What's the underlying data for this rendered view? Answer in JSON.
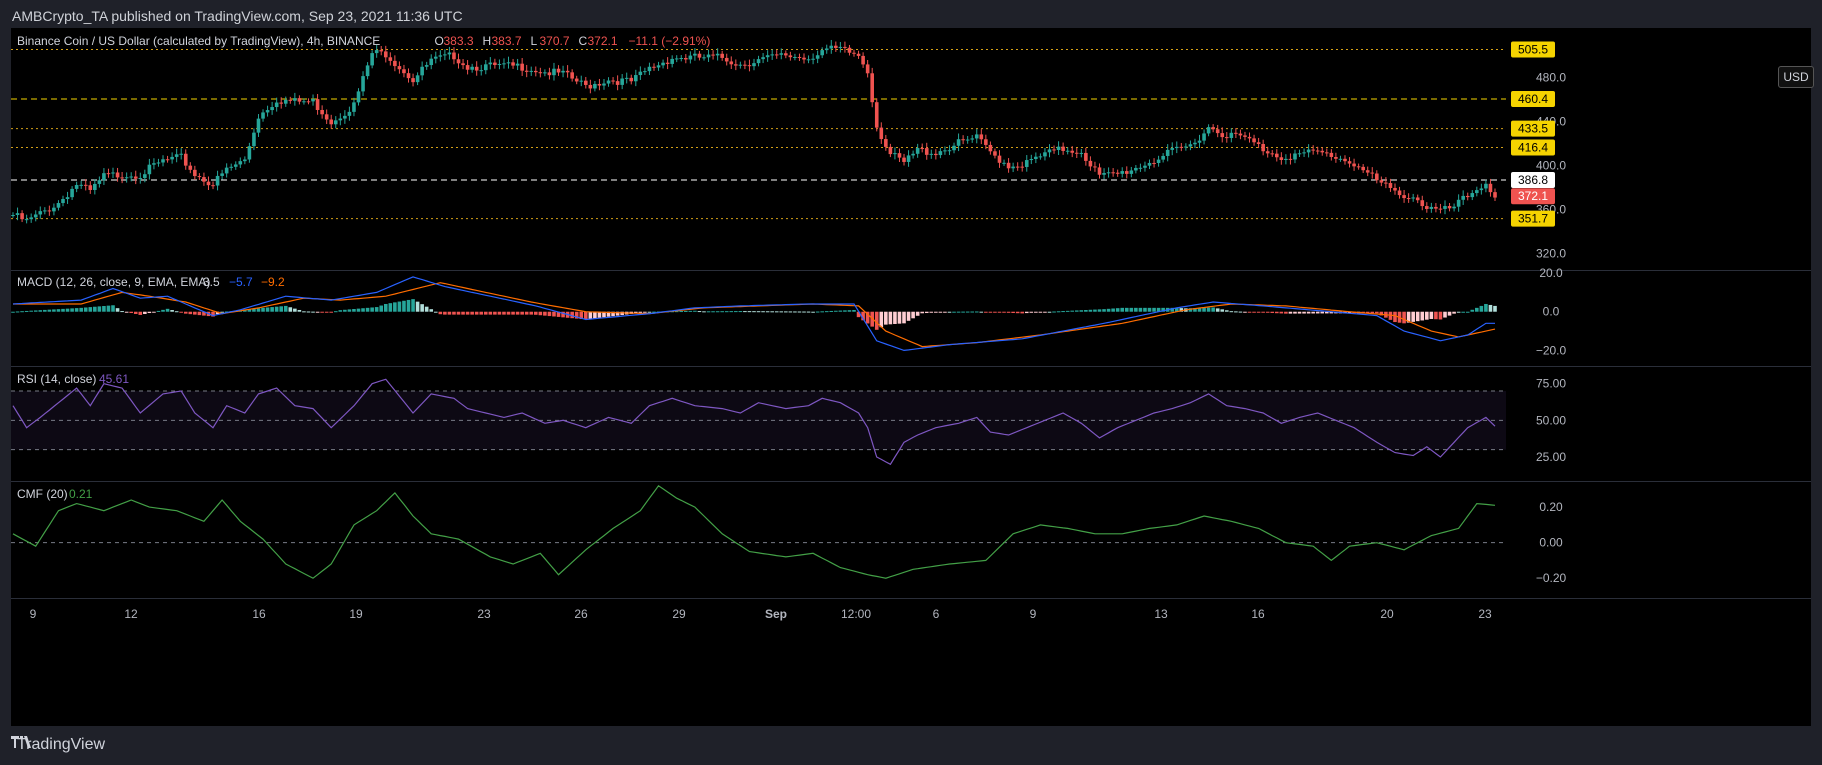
{
  "header": {
    "published_text": "AMBCrypto_TA published on TradingView.com, Sep 23, 2021 11:36 UTC"
  },
  "footer": {
    "logo_text": "TradingView"
  },
  "currency": "USD",
  "colors": {
    "background": "#000000",
    "bg_outer": "#1f2129",
    "up": "#26a69a",
    "down": "#ef5350",
    "macd_line": "#2962ff",
    "signal_line": "#ff6d00",
    "rsi_line": "#7e57c2",
    "cmf_line": "#43a047",
    "label_yellow": "#f5d300",
    "label_red": "#ef5350"
  },
  "legends": {
    "price": {
      "title": "Binance Coin / US Dollar (calculated by TradingView), 4h, BINANCE",
      "o_label": "O",
      "o": "383.3",
      "h_label": "H",
      "h": "383.7",
      "l_label": "L",
      "l": "370.7",
      "c_label": "C",
      "c": "372.1",
      "change": "−11.1 (−2.91%)"
    },
    "macd": {
      "title": "MACD (12, 26, close, 9, EMA, EMA)",
      "v1": "3.5",
      "v2": "−5.7",
      "v3": "−9.2"
    },
    "rsi": {
      "title": "RSI (14, close)",
      "v": "45.61"
    },
    "cmf": {
      "title": "CMF (20)",
      "v": "0.21"
    }
  },
  "chart_data": [
    {
      "type": "candlestick",
      "title": "Binance Coin / US Dollar (calculated by TradingView), 4h, BINANCE",
      "interval": "4h",
      "x_range": [
        "2021-08-08",
        "2021-09-23"
      ],
      "x_ticks": [
        "9",
        "12",
        "16",
        "19",
        "23",
        "26",
        "29",
        "Sep",
        "12:00",
        "6",
        "9",
        "13",
        "16",
        "20",
        "23"
      ],
      "y_ticks": [
        320,
        360,
        400,
        440,
        480
      ],
      "y_tick_labels": [
        "320.0",
        "360.0",
        "400.0",
        "440.0",
        "480.0"
      ],
      "ylim": [
        305,
        525
      ],
      "price_points": [
        [
          0,
          355
        ],
        [
          3,
          349
        ],
        [
          6,
          356
        ],
        [
          10,
          366
        ],
        [
          14,
          383
        ],
        [
          17,
          376
        ],
        [
          20,
          390
        ],
        [
          24,
          392
        ],
        [
          28,
          392
        ],
        [
          33,
          404
        ],
        [
          37,
          407
        ],
        [
          40,
          392
        ],
        [
          44,
          383
        ],
        [
          47,
          396
        ],
        [
          51,
          405
        ],
        [
          54,
          445
        ],
        [
          58,
          460
        ],
        [
          62,
          458
        ],
        [
          66,
          458
        ],
        [
          70,
          440
        ],
        [
          75,
          455
        ],
        [
          79,
          502
        ],
        [
          82,
          502
        ],
        [
          88,
          478
        ],
        [
          92,
          495
        ],
        [
          97,
          500
        ],
        [
          100,
          490
        ],
        [
          104,
          490
        ],
        [
          108,
          490
        ],
        [
          112,
          490
        ],
        [
          117,
          485
        ],
        [
          121,
          483
        ],
        [
          126,
          472
        ],
        [
          131,
          478
        ],
        [
          136,
          476
        ],
        [
          140,
          488
        ],
        [
          145,
          498
        ],
        [
          150,
          498
        ],
        [
          156,
          498
        ],
        [
          160,
          492
        ],
        [
          164,
          496
        ],
        [
          170,
          500
        ],
        [
          175,
          498
        ],
        [
          178,
          505
        ],
        [
          182,
          505
        ],
        [
          186,
          500
        ],
        [
          188,
          486
        ],
        [
          190,
          436
        ],
        [
          193,
          410
        ],
        [
          196,
          402
        ],
        [
          199,
          414
        ],
        [
          203,
          412
        ],
        [
          208,
          420
        ],
        [
          212,
          425
        ],
        [
          215,
          412
        ],
        [
          219,
          400
        ],
        [
          223,
          402
        ],
        [
          227,
          410
        ],
        [
          231,
          415
        ],
        [
          235,
          413
        ],
        [
          239,
          390
        ],
        [
          243,
          392
        ],
        [
          247,
          398
        ],
        [
          251,
          405
        ],
        [
          255,
          412
        ],
        [
          259,
          418
        ],
        [
          263,
          435
        ],
        [
          267,
          428
        ],
        [
          271,
          425
        ],
        [
          275,
          415
        ],
        [
          279,
          408
        ],
        [
          283,
          410
        ],
        [
          287,
          412
        ],
        [
          291,
          408
        ],
        [
          295,
          402
        ],
        [
          300,
          386
        ],
        [
          304,
          375
        ],
        [
          308,
          372
        ],
        [
          311,
          362
        ],
        [
          314,
          358
        ],
        [
          317,
          362
        ],
        [
          320,
          372
        ],
        [
          324,
          385
        ],
        [
          326,
          372
        ]
      ],
      "horizontal_levels": [
        {
          "value": 505.5,
          "label": "505.5",
          "style": "dotted",
          "color": "#d4a017"
        },
        {
          "value": 460.4,
          "label": "460.4",
          "style": "dashed",
          "color": "#f5d300"
        },
        {
          "value": 433.5,
          "label": "433.5",
          "style": "dotted",
          "color": "#d4a017"
        },
        {
          "value": 416.4,
          "label": "416.4",
          "style": "dotted",
          "color": "#d4a017"
        },
        {
          "value": 386.8,
          "label": "386.8",
          "style": "dashed",
          "color": "#ffffff"
        },
        {
          "value": 351.7,
          "label": "351.7",
          "style": "dotted",
          "color": "#d4a017"
        }
      ],
      "last_price": {
        "value": 372.1,
        "label": "372.1"
      }
    },
    {
      "type": "macd",
      "title": "MACD (12, 26, close, 9, EMA, EMA)",
      "y_ticks": [
        20,
        0,
        -20
      ],
      "y_tick_labels": [
        "20.0",
        "0.0",
        "−20.0"
      ],
      "ylim": [
        -27,
        20
      ],
      "macd_points": [
        [
          0,
          4
        ],
        [
          15,
          6
        ],
        [
          22,
          12
        ],
        [
          28,
          7
        ],
        [
          34,
          8
        ],
        [
          44,
          -2
        ],
        [
          50,
          1
        ],
        [
          60,
          8
        ],
        [
          70,
          6
        ],
        [
          80,
          10
        ],
        [
          88,
          18
        ],
        [
          95,
          13
        ],
        [
          105,
          8
        ],
        [
          115,
          3
        ],
        [
          126,
          -4
        ],
        [
          140,
          -1
        ],
        [
          150,
          2
        ],
        [
          160,
          3
        ],
        [
          175,
          4
        ],
        [
          185,
          4
        ],
        [
          190,
          -15
        ],
        [
          196,
          -20
        ],
        [
          206,
          -17
        ],
        [
          222,
          -14
        ],
        [
          240,
          -6
        ],
        [
          256,
          2
        ],
        [
          264,
          5
        ],
        [
          275,
          3
        ],
        [
          290,
          0
        ],
        [
          300,
          -2
        ],
        [
          306,
          -10
        ],
        [
          314,
          -15
        ],
        [
          320,
          -12
        ],
        [
          324,
          -6
        ],
        [
          326,
          -6
        ]
      ],
      "signal_points": [
        [
          0,
          4
        ],
        [
          15,
          4
        ],
        [
          24,
          10
        ],
        [
          30,
          8
        ],
        [
          38,
          5
        ],
        [
          46,
          -1
        ],
        [
          54,
          2
        ],
        [
          64,
          7
        ],
        [
          72,
          6
        ],
        [
          82,
          8
        ],
        [
          94,
          15
        ],
        [
          104,
          10
        ],
        [
          114,
          5
        ],
        [
          126,
          0
        ],
        [
          140,
          -1
        ],
        [
          152,
          2
        ],
        [
          164,
          3
        ],
        [
          176,
          4
        ],
        [
          186,
          3
        ],
        [
          192,
          -10
        ],
        [
          200,
          -18
        ],
        [
          212,
          -16
        ],
        [
          226,
          -12
        ],
        [
          244,
          -6
        ],
        [
          258,
          1
        ],
        [
          268,
          4
        ],
        [
          280,
          3
        ],
        [
          294,
          0
        ],
        [
          304,
          -2
        ],
        [
          312,
          -10
        ],
        [
          318,
          -13
        ],
        [
          324,
          -10
        ],
        [
          326,
          -9
        ]
      ]
    },
    {
      "type": "line",
      "title": "RSI (14, close)",
      "y_ticks": [
        75,
        50,
        25
      ],
      "y_tick_labels": [
        "75.00",
        "50.00",
        "25.00"
      ],
      "band": [
        30,
        70
      ],
      "ylim": [
        10,
        85
      ],
      "values": [
        [
          0,
          60
        ],
        [
          3,
          45
        ],
        [
          6,
          52
        ],
        [
          10,
          62
        ],
        [
          14,
          72
        ],
        [
          17,
          60
        ],
        [
          20,
          75
        ],
        [
          24,
          72
        ],
        [
          28,
          55
        ],
        [
          33,
          68
        ],
        [
          37,
          70
        ],
        [
          40,
          55
        ],
        [
          44,
          45
        ],
        [
          47,
          60
        ],
        [
          51,
          55
        ],
        [
          54,
          68
        ],
        [
          58,
          72
        ],
        [
          62,
          60
        ],
        [
          66,
          58
        ],
        [
          70,
          45
        ],
        [
          75,
          60
        ],
        [
          79,
          75
        ],
        [
          82,
          78
        ],
        [
          88,
          55
        ],
        [
          92,
          68
        ],
        [
          97,
          65
        ],
        [
          100,
          58
        ],
        [
          104,
          55
        ],
        [
          108,
          52
        ],
        [
          112,
          55
        ],
        [
          117,
          48
        ],
        [
          121,
          50
        ],
        [
          126,
          45
        ],
        [
          131,
          52
        ],
        [
          136,
          48
        ],
        [
          140,
          60
        ],
        [
          145,
          65
        ],
        [
          150,
          60
        ],
        [
          156,
          58
        ],
        [
          160,
          55
        ],
        [
          164,
          62
        ],
        [
          170,
          58
        ],
        [
          175,
          60
        ],
        [
          178,
          65
        ],
        [
          182,
          62
        ],
        [
          186,
          55
        ],
        [
          188,
          45
        ],
        [
          190,
          25
        ],
        [
          193,
          20
        ],
        [
          196,
          35
        ],
        [
          199,
          40
        ],
        [
          203,
          45
        ],
        [
          208,
          48
        ],
        [
          212,
          52
        ],
        [
          215,
          42
        ],
        [
          219,
          40
        ],
        [
          223,
          45
        ],
        [
          227,
          50
        ],
        [
          231,
          55
        ],
        [
          235,
          48
        ],
        [
          239,
          38
        ],
        [
          243,
          45
        ],
        [
          247,
          50
        ],
        [
          251,
          55
        ],
        [
          255,
          58
        ],
        [
          259,
          62
        ],
        [
          263,
          68
        ],
        [
          267,
          60
        ],
        [
          271,
          58
        ],
        [
          275,
          55
        ],
        [
          279,
          48
        ],
        [
          283,
          52
        ],
        [
          287,
          55
        ],
        [
          291,
          50
        ],
        [
          295,
          45
        ],
        [
          300,
          35
        ],
        [
          304,
          28
        ],
        [
          308,
          26
        ],
        [
          311,
          32
        ],
        [
          314,
          25
        ],
        [
          317,
          35
        ],
        [
          320,
          45
        ],
        [
          324,
          52
        ],
        [
          326,
          46
        ]
      ]
    },
    {
      "type": "line",
      "title": "CMF (20)",
      "y_ticks": [
        0.2,
        0,
        -0.2
      ],
      "y_tick_labels": [
        "0.20",
        "0.00",
        "−0.20"
      ],
      "ylim": [
        -0.3,
        0.33
      ],
      "values": [
        [
          0,
          0.05
        ],
        [
          5,
          -0.02
        ],
        [
          10,
          0.18
        ],
        [
          14,
          0.22
        ],
        [
          20,
          0.18
        ],
        [
          26,
          0.24
        ],
        [
          30,
          0.2
        ],
        [
          36,
          0.18
        ],
        [
          42,
          0.12
        ],
        [
          46,
          0.24
        ],
        [
          50,
          0.12
        ],
        [
          55,
          0.02
        ],
        [
          60,
          -0.12
        ],
        [
          66,
          -0.2
        ],
        [
          70,
          -0.12
        ],
        [
          75,
          0.1
        ],
        [
          80,
          0.18
        ],
        [
          84,
          0.28
        ],
        [
          88,
          0.15
        ],
        [
          92,
          0.05
        ],
        [
          98,
          0.02
        ],
        [
          105,
          -0.08
        ],
        [
          110,
          -0.12
        ],
        [
          116,
          -0.06
        ],
        [
          120,
          -0.18
        ],
        [
          126,
          -0.04
        ],
        [
          132,
          0.08
        ],
        [
          138,
          0.18
        ],
        [
          142,
          0.32
        ],
        [
          146,
          0.25
        ],
        [
          150,
          0.2
        ],
        [
          156,
          0.05
        ],
        [
          162,
          -0.05
        ],
        [
          170,
          -0.08
        ],
        [
          176,
          -0.06
        ],
        [
          182,
          -0.14
        ],
        [
          188,
          -0.18
        ],
        [
          192,
          -0.2
        ],
        [
          198,
          -0.15
        ],
        [
          206,
          -0.12
        ],
        [
          214,
          -0.1
        ],
        [
          220,
          0.05
        ],
        [
          226,
          0.1
        ],
        [
          232,
          0.08
        ],
        [
          238,
          0.05
        ],
        [
          244,
          0.05
        ],
        [
          250,
          0.08
        ],
        [
          256,
          0.1
        ],
        [
          262,
          0.15
        ],
        [
          268,
          0.12
        ],
        [
          274,
          0.08
        ],
        [
          280,
          0.0
        ],
        [
          286,
          -0.02
        ],
        [
          290,
          -0.1
        ],
        [
          294,
          -0.02
        ],
        [
          300,
          0.0
        ],
        [
          306,
          -0.04
        ],
        [
          312,
          0.04
        ],
        [
          318,
          0.08
        ],
        [
          322,
          0.22
        ],
        [
          326,
          0.21
        ]
      ]
    }
  ]
}
